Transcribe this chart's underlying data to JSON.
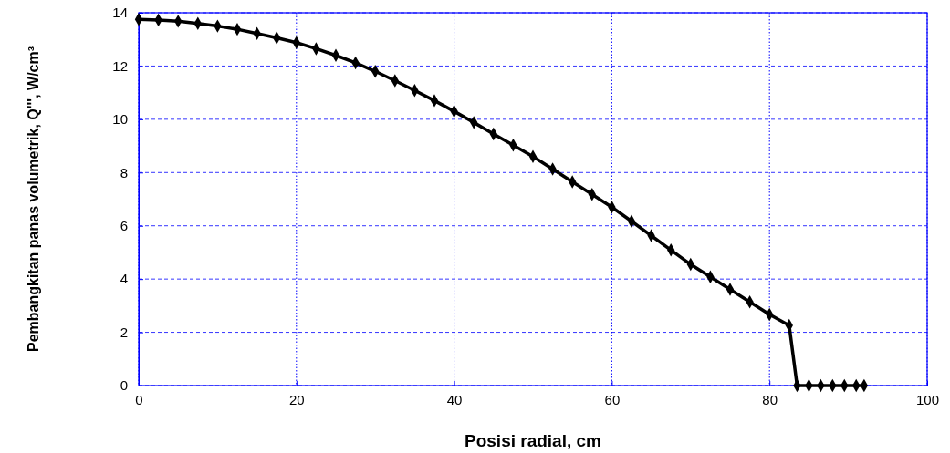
{
  "chart_data": {
    "type": "line",
    "xlabel": "Posisi radial, cm",
    "ylabel": "Pembangkitan panas volumetrik, Q''', W/cm³",
    "x": [
      0,
      2.5,
      5,
      7.5,
      10,
      12.5,
      15,
      17.5,
      20,
      22.5,
      25,
      27.5,
      30,
      32.5,
      35,
      37.5,
      40,
      42.5,
      45,
      47.5,
      50,
      52.5,
      55,
      57.5,
      60,
      62.5,
      65,
      67.5,
      70,
      72.5,
      75,
      77.5,
      80,
      82.5,
      83.5,
      85,
      86.5,
      88,
      89.5,
      91,
      92
    ],
    "series": [
      {
        "color": "#000000",
        "values": [
          13.75,
          13.73,
          13.68,
          13.6,
          13.5,
          13.38,
          13.22,
          13.06,
          12.88,
          12.65,
          12.4,
          12.12,
          11.8,
          11.45,
          11.08,
          10.7,
          10.3,
          9.88,
          9.45,
          9.03,
          8.6,
          8.13,
          7.65,
          7.18,
          6.7,
          6.17,
          5.63,
          5.09,
          4.55,
          4.08,
          3.61,
          3.14,
          2.67,
          2.26,
          0,
          0,
          0,
          0,
          0,
          0,
          0
        ]
      }
    ],
    "xlim": [
      0,
      100
    ],
    "xticks": [
      0,
      20,
      40,
      60,
      80,
      100
    ],
    "ylim": [
      0,
      14
    ],
    "yticks": [
      0,
      2,
      4,
      6,
      8,
      10,
      12,
      14
    ],
    "grid": true,
    "marker": "diamond",
    "line_style": "solid"
  }
}
